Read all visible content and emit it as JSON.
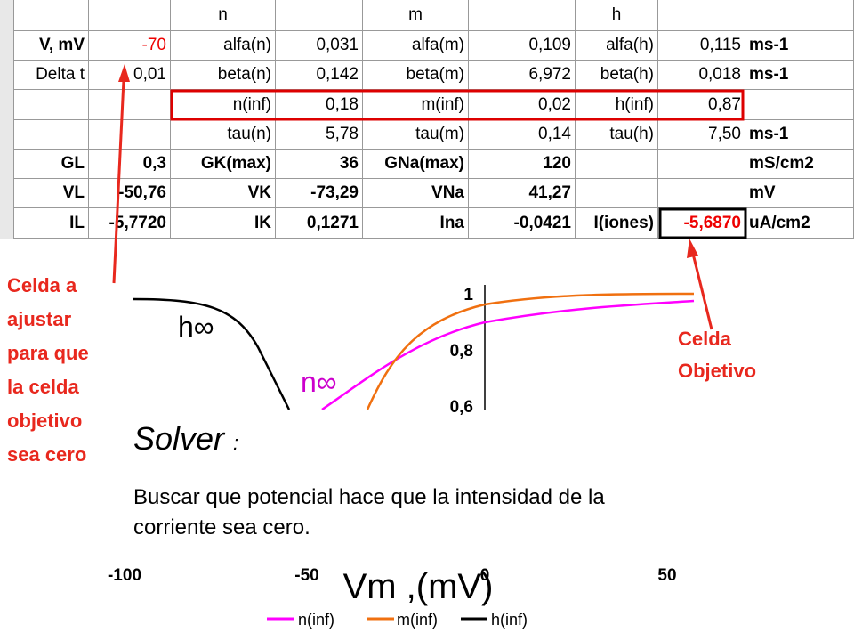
{
  "sheet": {
    "rows": [
      [
        null,
        null,
        "n",
        null,
        "m",
        null,
        "h",
        null,
        null
      ],
      [
        "V, mV",
        "-70",
        "alfa(n)",
        "0,031",
        "alfa(m)",
        "0,109",
        "alfa(h)",
        "0,115",
        "ms-1"
      ],
      [
        "Delta t",
        "0,01",
        "beta(n)",
        "0,142",
        "beta(m)",
        "6,972",
        "beta(h)",
        "0,018",
        "ms-1"
      ],
      [
        null,
        null,
        "n(inf)",
        "0,18",
        "m(inf)",
        "0,02",
        "h(inf)",
        "0,87",
        null
      ],
      [
        null,
        null,
        "tau(n)",
        "5,78",
        "tau(m)",
        "0,14",
        "tau(h)",
        "7,50",
        "ms-1"
      ],
      [
        "GL",
        "0,3",
        "GK(max)",
        "36",
        "GNa(max)",
        "120",
        null,
        null,
        "mS/cm2"
      ],
      [
        "VL",
        "-50,76",
        "VK",
        "-73,29",
        "VNa",
        "41,27",
        null,
        null,
        "mV"
      ],
      [
        "IL",
        "-5,7720",
        "IK",
        "0,1271",
        "Ina",
        "-0,0421",
        "I(iones)",
        "-5,6870",
        "uA/cm2"
      ]
    ]
  },
  "plot": {
    "yticks": [
      "1",
      "0,8",
      "0,6"
    ],
    "xticks": [
      "-100",
      "-50",
      "0",
      "50"
    ],
    "xlabel": "Vm ,(mV)",
    "curve_labels": [
      "h∞",
      "n∞"
    ],
    "legend": [
      "n(inf)",
      "m(inf)",
      "h(inf)"
    ]
  },
  "annotations": {
    "adjust": [
      "Celda a",
      "ajustar",
      "para que",
      "la celda",
      "objetivo",
      "sea cero"
    ],
    "target": [
      "Celda",
      "Objetivo"
    ]
  },
  "solver": {
    "title": "Solver",
    "colon": ":",
    "body": [
      "Buscar que potencial hace que la intensidad de la",
      "corriente sea cero."
    ]
  }
}
